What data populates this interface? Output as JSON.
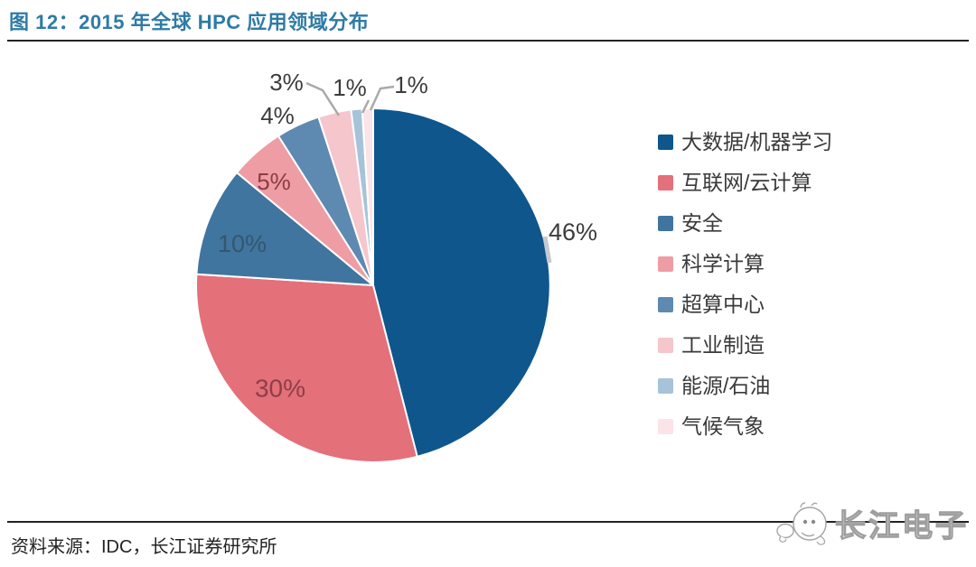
{
  "figure": {
    "title": "图 12：2015 年全球 HPC 应用领域分布",
    "source": "资料来源：IDC，长江证券研究所",
    "watermark": "长江电子"
  },
  "chart_data": {
    "type": "pie",
    "title": "2015 年全球 HPC 应用领域分布",
    "unit": "%",
    "direction": "clockwise",
    "start_angle_deg": 0,
    "legend_position": "right",
    "slices": [
      {
        "label": "大数据/机器学习",
        "value": 46,
        "color": "#0e568c",
        "label_color": "#3d3d3d",
        "label_placement": "outside"
      },
      {
        "label": "互联网/云计算",
        "value": 30,
        "color": "#e4707a",
        "label_color": "#8e3e48",
        "label_placement": "inside"
      },
      {
        "label": "安全",
        "value": 10,
        "color": "#40759f",
        "label_color": "#33576d",
        "label_placement": "inside"
      },
      {
        "label": "科学计算",
        "value": 5,
        "color": "#ee9da5",
        "label_color": "#8e3c44",
        "label_placement": "inside"
      },
      {
        "label": "超算中心",
        "value": 4,
        "color": "#5e8ab1",
        "label_color": "#3c3c3c",
        "label_placement": "outside"
      },
      {
        "label": "工业制造",
        "value": 3,
        "color": "#f5c6cc",
        "label_color": "#3c3c3c",
        "label_placement": "outside"
      },
      {
        "label": "能源/石油",
        "value": 1,
        "color": "#a7c3d9",
        "label_color": "#3c3c3c",
        "label_placement": "outside"
      },
      {
        "label": "气候气象",
        "value": 1,
        "color": "#fbe4e7",
        "label_color": "#3c3c3c",
        "label_placement": "outside"
      }
    ]
  },
  "theme": {
    "background": "#ffffff",
    "title_color": "#2e7ba6",
    "rule_color": "#232323",
    "text_color": "#3a3a3a",
    "leader_color": "#a9a9a9",
    "tick_color": "#c6cbd0",
    "slice_border": "#ffffff"
  }
}
